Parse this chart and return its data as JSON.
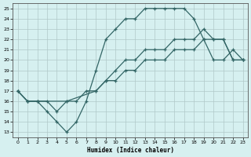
{
  "title": "",
  "xlabel": "Humidex (Indice chaleur)",
  "ylabel": "",
  "bg_color": "#d6f0f0",
  "line_color": "#336666",
  "grid_color": "#b0c8c8",
  "xlim": [
    -0.5,
    23.5
  ],
  "ylim": [
    12.5,
    25.5
  ],
  "xticks": [
    0,
    1,
    2,
    3,
    4,
    5,
    6,
    7,
    8,
    9,
    10,
    11,
    12,
    13,
    14,
    15,
    16,
    17,
    18,
    19,
    20,
    21,
    22,
    23
  ],
  "yticks": [
    13,
    14,
    15,
    16,
    17,
    18,
    19,
    20,
    21,
    22,
    23,
    24,
    25
  ],
  "line1_x": [
    0,
    1,
    2,
    3,
    4,
    5,
    6,
    7,
    8,
    9,
    10,
    11,
    12,
    13,
    14,
    15,
    16,
    17,
    18,
    19,
    20,
    21,
    22,
    23
  ],
  "line1_y": [
    17,
    16,
    16,
    15,
    14,
    13,
    14,
    16,
    19,
    22,
    23,
    24,
    24,
    25,
    25,
    25,
    25,
    25,
    24,
    22,
    20,
    20,
    21,
    20
  ],
  "line2_x": [
    0,
    1,
    2,
    3,
    4,
    5,
    8,
    9,
    10,
    11,
    12,
    13,
    14,
    15,
    16,
    17,
    18,
    19,
    20,
    21,
    22,
    23
  ],
  "line2_y": [
    17,
    16,
    16,
    16,
    15,
    16,
    17,
    18,
    19,
    20,
    20,
    21,
    21,
    21,
    22,
    22,
    22,
    23,
    22,
    22,
    20,
    20
  ],
  "line3_x": [
    0,
    1,
    2,
    5,
    6,
    7,
    8,
    9,
    10,
    11,
    12,
    13,
    14,
    15,
    16,
    17,
    18,
    19,
    20,
    21,
    22,
    23
  ],
  "line3_y": [
    17,
    16,
    16,
    16,
    16,
    17,
    17,
    18,
    18,
    19,
    19,
    20,
    20,
    20,
    21,
    21,
    21,
    22,
    22,
    22,
    20,
    20
  ]
}
